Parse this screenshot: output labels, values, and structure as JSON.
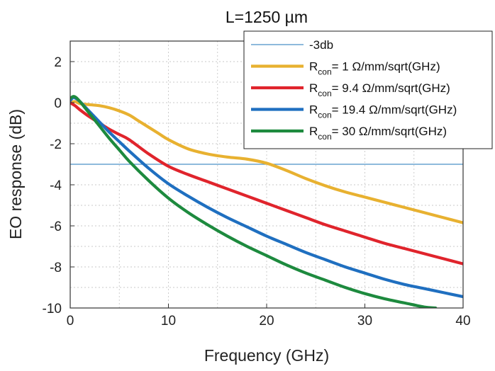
{
  "chart_data": {
    "type": "line",
    "title": "L=1250 µm",
    "xlabel": "Frequency (GHz)",
    "ylabel": "EO response (dB)",
    "xlim": [
      0,
      40
    ],
    "ylim": [
      -10,
      3
    ],
    "xticks": [
      0,
      10,
      20,
      30,
      40
    ],
    "yticks": [
      2,
      0,
      -2,
      -4,
      -6,
      -8,
      -10
    ],
    "grid": true,
    "legend_position": "top-right",
    "reference_line": {
      "name": "-3db",
      "y": -3,
      "color": "#4a90c8"
    },
    "series": [
      {
        "name": "R",
        "name_sub": "con",
        "name_suffix": "= 1 Ω/mm/sqrt(GHz)",
        "color": "#e8b130",
        "x": [
          0,
          0.5,
          1,
          2,
          3,
          4,
          5,
          6,
          7,
          8,
          9,
          10,
          12,
          14,
          16,
          18,
          20,
          22,
          24,
          26,
          28,
          30,
          32,
          34,
          36,
          38,
          40
        ],
        "y": [
          0,
          0.05,
          -0.05,
          -0.1,
          -0.15,
          -0.25,
          -0.4,
          -0.6,
          -0.9,
          -1.2,
          -1.5,
          -1.8,
          -2.25,
          -2.5,
          -2.65,
          -2.75,
          -2.95,
          -3.3,
          -3.7,
          -4.05,
          -4.35,
          -4.6,
          -4.85,
          -5.1,
          -5.35,
          -5.6,
          -5.85
        ]
      },
      {
        "name": "R",
        "name_sub": "con",
        "name_suffix": "= 9.4 Ω/mm/sqrt(GHz)",
        "color": "#e0242c",
        "x": [
          0,
          0.5,
          1,
          2,
          3,
          4,
          5,
          6,
          8,
          10,
          12,
          14,
          16,
          18,
          20,
          22,
          24,
          26,
          28,
          30,
          32,
          34,
          36,
          38,
          40
        ],
        "y": [
          0,
          -0.15,
          -0.35,
          -0.7,
          -1.0,
          -1.3,
          -1.55,
          -1.8,
          -2.5,
          -3.1,
          -3.5,
          -3.85,
          -4.2,
          -4.55,
          -4.9,
          -5.25,
          -5.6,
          -5.95,
          -6.25,
          -6.55,
          -6.85,
          -7.1,
          -7.35,
          -7.6,
          -7.85
        ]
      },
      {
        "name": "R",
        "name_sub": "con",
        "name_suffix": "= 19.4 Ω/mm/sqrt(GHz)",
        "color": "#1f6fc0",
        "x": [
          0,
          0.3,
          0.6,
          1,
          1.5,
          2,
          3,
          4,
          5,
          6,
          8,
          10,
          12,
          14,
          16,
          18,
          20,
          22,
          24,
          26,
          28,
          30,
          32,
          34,
          36,
          38,
          40
        ],
        "y": [
          0.1,
          0.25,
          0.2,
          0.05,
          -0.2,
          -0.45,
          -0.95,
          -1.45,
          -1.9,
          -2.35,
          -3.2,
          -3.95,
          -4.55,
          -5.1,
          -5.6,
          -6.05,
          -6.5,
          -6.9,
          -7.3,
          -7.65,
          -8.0,
          -8.3,
          -8.6,
          -8.85,
          -9.05,
          -9.25,
          -9.45
        ]
      },
      {
        "name": "R",
        "name_sub": "con",
        "name_suffix": "= 30 Ω/mm/sqrt(GHz)",
        "color": "#1d8a3e",
        "x": [
          0,
          0.3,
          0.6,
          1,
          1.5,
          2,
          3,
          4,
          5,
          6,
          8,
          10,
          12,
          14,
          16,
          18,
          20,
          22,
          24,
          26,
          28,
          30,
          32,
          34,
          36,
          37.2
        ],
        "y": [
          0.2,
          0.3,
          0.25,
          0.05,
          -0.25,
          -0.55,
          -1.15,
          -1.75,
          -2.3,
          -2.85,
          -3.8,
          -4.65,
          -5.35,
          -5.95,
          -6.5,
          -7.0,
          -7.45,
          -7.9,
          -8.3,
          -8.65,
          -9.0,
          -9.3,
          -9.55,
          -9.75,
          -9.95,
          -10.0
        ]
      }
    ]
  }
}
